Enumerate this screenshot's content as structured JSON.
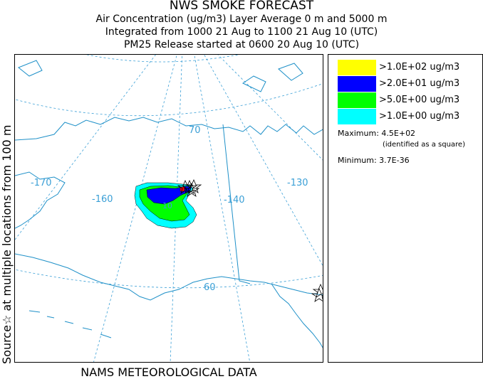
{
  "header": {
    "title": "NWS SMOKE FORECAST",
    "line1": "Air Concentration (ug/m3) Layer Average    0 m and  5000 m",
    "line2": "Integrated from 1000 21 Aug to 1100 21 Aug 10 (UTC)",
    "line3": "PM25 Release started at 0600 20 Aug 10 (UTC)"
  },
  "side_label": "Source☆ at multiple locations from 100 m",
  "footer": "NAMS METEOROLOGICAL DATA",
  "map": {
    "lon_labels": [
      "-170",
      "-160",
      "-140",
      "-130"
    ],
    "lat_labels": [
      "70",
      "60"
    ],
    "inner_value_label": "10"
  },
  "legend": {
    "items": [
      {
        "label": ">1.0E+02 ug/m3",
        "color": "#ffff00"
      },
      {
        "label": ">2.0E+01 ug/m3",
        "color": "#0000ff"
      },
      {
        "label": ">5.0E+00 ug/m3",
        "color": "#00ff00"
      },
      {
        "label": ">1.0E+00 ug/m3",
        "color": "#00ffff"
      }
    ],
    "maximum": "Maximum: 4.5E+02",
    "maximum_note": "(identified as a square)",
    "minimum": "Minimum: 3.7E-36"
  },
  "colors": {
    "coast": "#1e90c8",
    "grid": "#3a9fd6",
    "lon_lat_label": "#3a9fd6"
  }
}
